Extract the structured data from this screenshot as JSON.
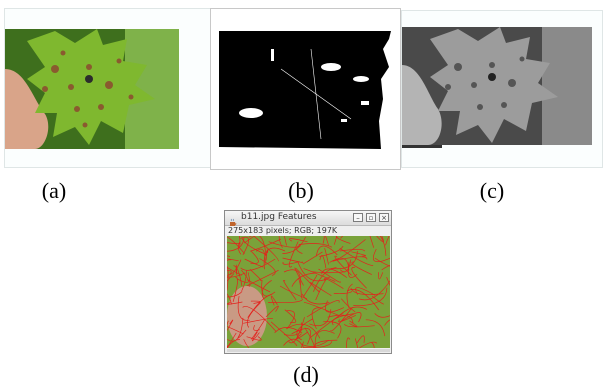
{
  "captions": {
    "a": "(a)",
    "b": "(b)",
    "c": "(c)",
    "d": "(d)"
  },
  "window": {
    "title": "b11.jpg Features",
    "info": "275x183 pixels; RGB; 197K",
    "minimize": "–",
    "maximize": "▫",
    "close": "×",
    "icon": "java-coffee-icon"
  },
  "colors": {
    "leaf_green": "#5e9b2a",
    "spot_brown": "#8a5a2f",
    "feature_red": "#e3211c",
    "mask_black": "#000000",
    "gray_mid": "#7e7e7e"
  }
}
